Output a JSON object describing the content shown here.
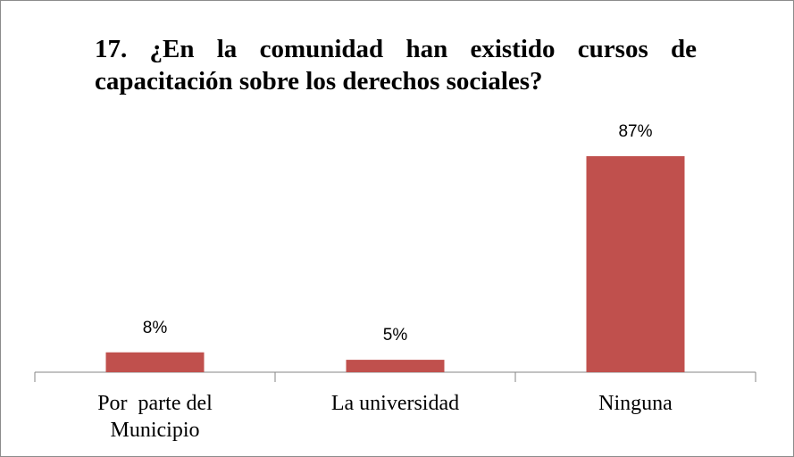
{
  "chart_data": {
    "type": "bar",
    "title": "17. ¿En la comunidad han existido cursos de capacitación sobre los derechos sociales?",
    "categories": [
      "Por  parte del Municipio",
      "La universidad",
      "Ninguna"
    ],
    "values": [
      8,
      5,
      87
    ],
    "value_labels": [
      "8%",
      "5%",
      "87%"
    ],
    "color": "#c0504d"
  }
}
